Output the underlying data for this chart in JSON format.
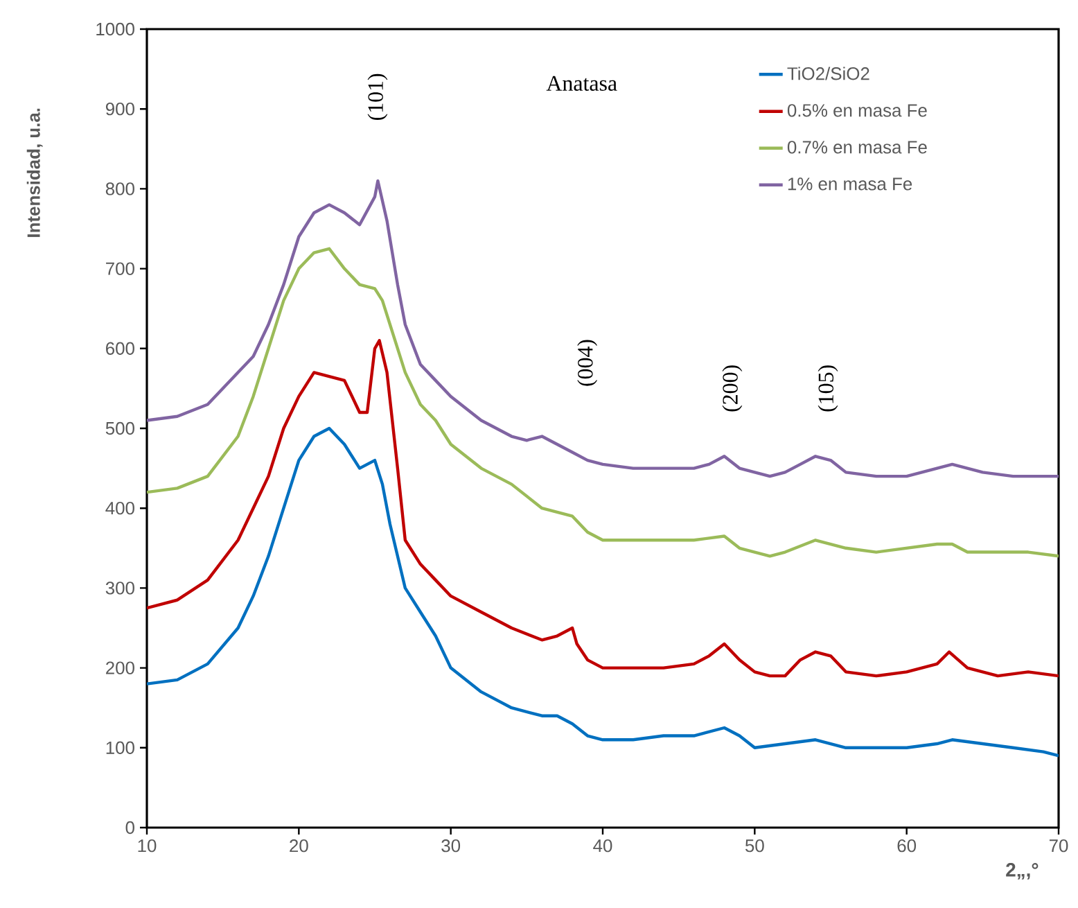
{
  "chart_data": {
    "type": "line",
    "xlabel": "2„,°",
    "ylabel": "Intensidad, u.a.",
    "xlim": [
      10,
      70
    ],
    "ylim": [
      0,
      1000
    ],
    "xticks": [
      10,
      20,
      30,
      40,
      50,
      60,
      70
    ],
    "yticks": [
      0,
      100,
      200,
      300,
      400,
      500,
      600,
      700,
      800,
      900,
      1000
    ],
    "grid": false,
    "legend": "top right",
    "marker": "none",
    "line_style": "solid",
    "annotations": [
      "Anatasa",
      "(101)",
      "(004)",
      "(200)",
      "(105)"
    ],
    "series": [
      {
        "name": "TiO2/SiO2",
        "color": "#0070c0",
        "x": [
          10,
          12,
          14,
          16,
          17,
          18,
          19,
          20,
          21,
          22,
          23,
          24,
          25,
          25.5,
          26,
          27,
          28,
          29,
          30,
          32,
          34,
          36,
          37,
          38,
          39,
          40,
          42,
          44,
          46,
          48,
          49,
          50,
          52,
          54,
          56,
          58,
          60,
          62,
          63,
          65,
          67,
          69,
          70
        ],
        "values": [
          180,
          185,
          205,
          250,
          290,
          340,
          400,
          460,
          490,
          500,
          480,
          450,
          460,
          430,
          380,
          300,
          270,
          240,
          200,
          170,
          150,
          140,
          140,
          130,
          115,
          110,
          110,
          115,
          115,
          125,
          115,
          100,
          105,
          110,
          100,
          100,
          100,
          105,
          110,
          105,
          100,
          95,
          90
        ]
      },
      {
        "name": "0.5% en masa Fe",
        "color": "#c00000",
        "x": [
          10,
          12,
          14,
          16,
          17,
          18,
          19,
          20,
          21,
          22,
          23,
          24,
          24.5,
          25,
          25.3,
          25.8,
          26.5,
          27,
          28,
          29,
          30,
          32,
          34,
          36,
          37,
          38,
          38.3,
          39,
          40,
          42,
          44,
          46,
          47,
          48,
          49,
          50,
          51,
          52,
          53,
          54,
          55,
          56,
          58,
          60,
          62,
          62.8,
          64,
          66,
          68,
          70
        ],
        "values": [
          275,
          285,
          310,
          360,
          400,
          440,
          500,
          540,
          570,
          565,
          560,
          520,
          520,
          600,
          610,
          570,
          450,
          360,
          330,
          310,
          290,
          270,
          250,
          235,
          240,
          250,
          230,
          210,
          200,
          200,
          200,
          205,
          215,
          230,
          210,
          195,
          190,
          190,
          210,
          220,
          215,
          195,
          190,
          195,
          205,
          220,
          200,
          190,
          195,
          190
        ]
      },
      {
        "name": "0.7% en masa Fe",
        "color": "#9bbb59",
        "x": [
          10,
          12,
          14,
          16,
          17,
          18,
          19,
          20,
          21,
          22,
          23,
          24,
          25,
          25.5,
          26,
          27,
          28,
          29,
          30,
          32,
          34,
          36,
          38,
          39,
          40,
          42,
          44,
          46,
          48,
          49,
          50,
          51,
          52,
          54,
          56,
          58,
          60,
          62,
          63,
          64,
          66,
          68,
          70
        ],
        "values": [
          420,
          425,
          440,
          490,
          540,
          600,
          660,
          700,
          720,
          725,
          700,
          680,
          675,
          660,
          630,
          570,
          530,
          510,
          480,
          450,
          430,
          400,
          390,
          370,
          360,
          360,
          360,
          360,
          365,
          350,
          345,
          340,
          345,
          360,
          350,
          345,
          350,
          355,
          355,
          345,
          345,
          345,
          340
        ]
      },
      {
        "name": "1% en masa Fe",
        "color": "#8064a2",
        "x": [
          10,
          12,
          14,
          16,
          17,
          18,
          19,
          20,
          21,
          22,
          23,
          24,
          25,
          25.2,
          25.8,
          26.5,
          27,
          28,
          29,
          30,
          32,
          34,
          35,
          36,
          37,
          38,
          39,
          40,
          42,
          44,
          46,
          47,
          48,
          49,
          50,
          51,
          52,
          53,
          54,
          55,
          56,
          58,
          60,
          62,
          63,
          65,
          67,
          70
        ],
        "values": [
          510,
          515,
          530,
          570,
          590,
          630,
          680,
          740,
          770,
          780,
          770,
          755,
          790,
          810,
          760,
          680,
          630,
          580,
          560,
          540,
          510,
          490,
          485,
          490,
          480,
          470,
          460,
          455,
          450,
          450,
          450,
          455,
          465,
          450,
          445,
          440,
          445,
          455,
          465,
          460,
          445,
          440,
          440,
          450,
          455,
          445,
          440,
          440
        ]
      }
    ]
  }
}
